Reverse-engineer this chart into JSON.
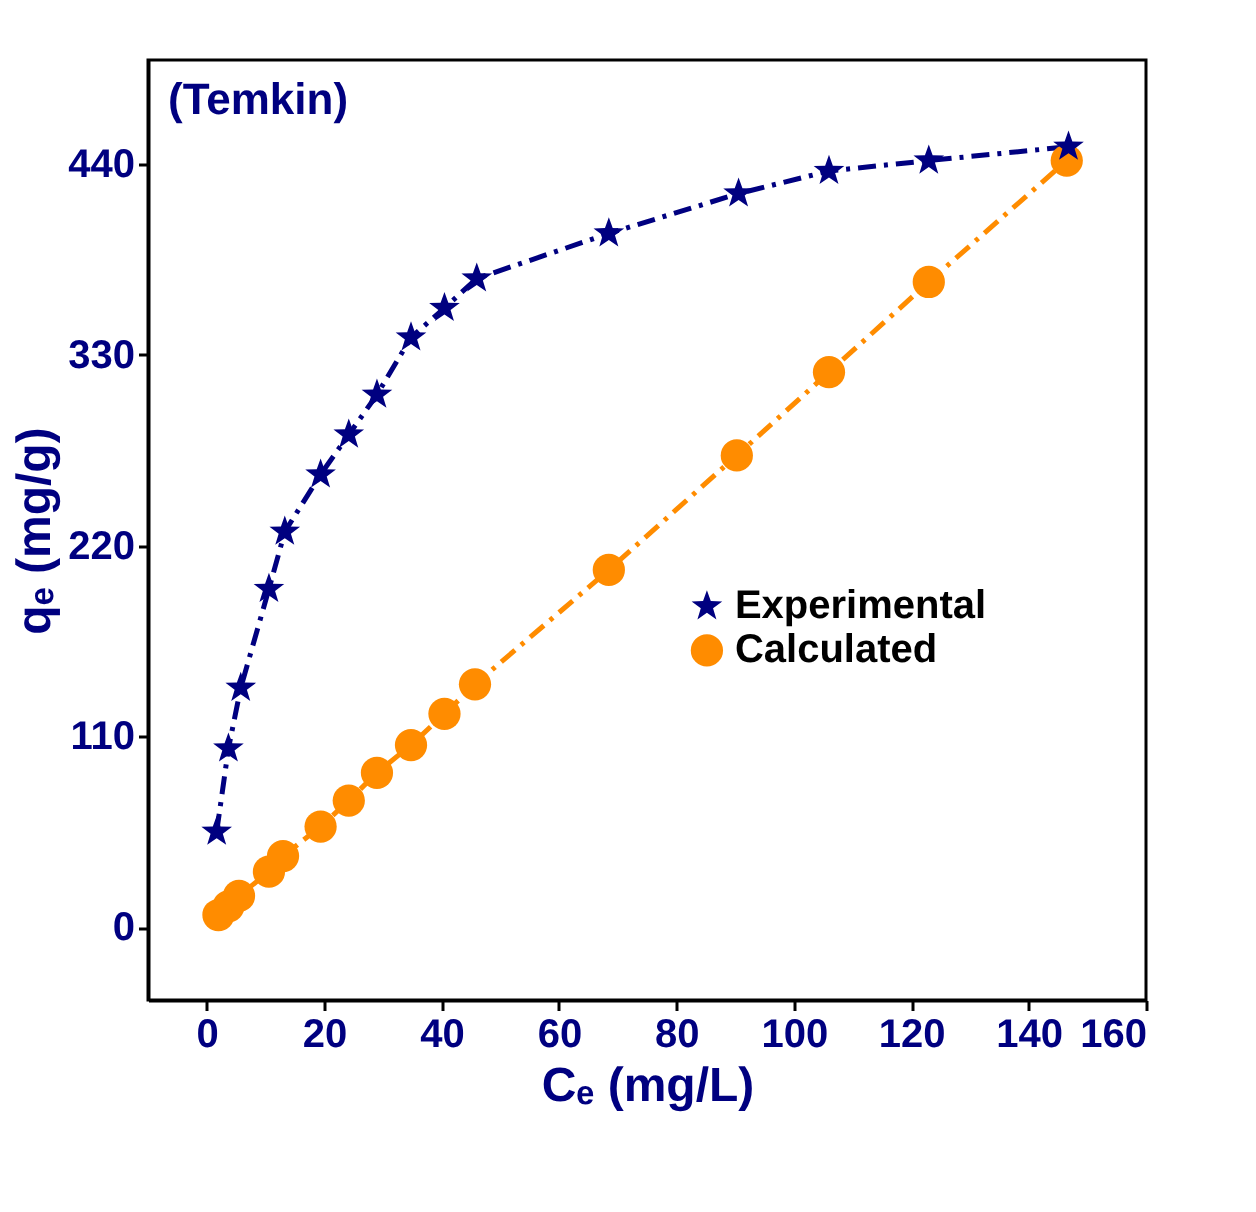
{
  "chart_data": {
    "type": "line",
    "title": "(Temkin)",
    "xlabel": "Cₑ (mg/L)",
    "ylabel": "qₑ (mg/g)",
    "x": [
      1.7,
      3.7,
      5.8,
      10.6,
      13.3,
      19.4,
      24.2,
      29,
      34.8,
      40.5,
      46,
      68.5,
      90.6,
      106,
      123,
      146.8
    ],
    "series": [
      {
        "name": "Experimental",
        "color": "#000080",
        "marker": "star",
        "line_style": "dashed",
        "values": [
          55,
          103,
          138,
          195,
          228,
          261,
          284,
          307,
          340,
          357,
          374,
          400,
          423,
          436,
          442,
          450
        ]
      },
      {
        "name": "Calculated",
        "color": "#ff8c00",
        "marker": "circle",
        "line_style": "dashed",
        "x": [
          2,
          3.7,
          5.5,
          10.6,
          13,
          19.4,
          24.2,
          29,
          34.8,
          40.5,
          45.7,
          68.5,
          90.3,
          106,
          123,
          146.5
        ],
        "values": [
          7,
          12,
          18,
          32,
          41,
          58,
          73,
          89,
          105,
          123,
          140,
          206,
          272,
          320,
          372,
          442
        ]
      }
    ],
    "xlim": [
      -10,
      160
    ],
    "xticks": [
      0,
      20,
      40,
      60,
      80,
      100,
      120,
      140,
      160
    ],
    "ylim": [
      -42,
      500
    ],
    "yticks": [
      0,
      110,
      220,
      330,
      440
    ],
    "grid": false,
    "legend": "right"
  }
}
